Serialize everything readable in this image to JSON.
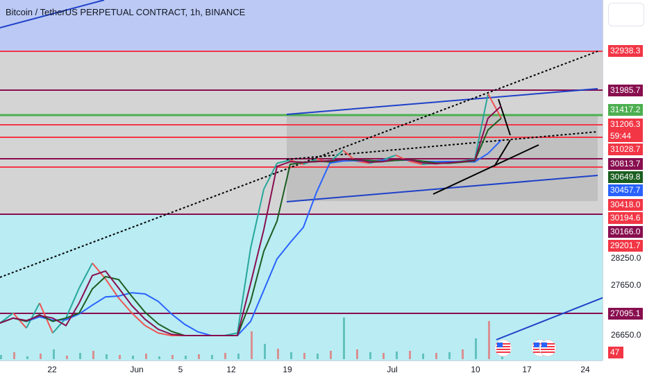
{
  "header": {
    "title": "Bitcoin / TetherUS PERPETUAL CONTRACT, 1h, BINANCE"
  },
  "colors": {
    "red_line": "#f23645",
    "maroon_line": "#880e4f",
    "green_line": "#4caf50",
    "blue_channel": "#1e40c8",
    "upper_zone": "#b2c1f2",
    "lower_zone": "#b2ebf2",
    "mid_zone": "#bdbdbd"
  },
  "price_axis": {
    "tags": [
      {
        "label": "32938.3",
        "bg": "#f23645",
        "fg": "#ffffff"
      },
      {
        "label": "31985.7",
        "bg": "#880e4f",
        "fg": "#ffffff"
      },
      {
        "label": "31417.2",
        "bg": "#4caf50",
        "fg": "#ffffff"
      },
      {
        "label": "31206.3",
        "bg": "#f23645",
        "fg": "#ffffff"
      },
      {
        "label": "59:44",
        "bg": "#f23645",
        "fg": "#ffffff"
      },
      {
        "label": "31028.7",
        "bg": "#f23645",
        "fg": "#ffffff"
      },
      {
        "label": "30813.7",
        "bg": "#880e4f",
        "fg": "#ffffff"
      },
      {
        "label": "30649.8",
        "bg": "#1b5e20",
        "fg": "#ffffff"
      },
      {
        "label": "30457.7",
        "bg": "#2962ff",
        "fg": "#ffffff"
      },
      {
        "label": "30418.0",
        "bg": "#f23645",
        "fg": "#ffffff"
      },
      {
        "label": "30194.6",
        "bg": "#f23645",
        "fg": "#ffffff"
      },
      {
        "label": "30166.0",
        "bg": "#880e4f",
        "fg": "#ffffff"
      },
      {
        "label": "29201.7",
        "bg": "#f23645",
        "fg": "#ffffff"
      },
      {
        "label": "27095.1",
        "bg": "#880e4f",
        "fg": "#ffffff"
      },
      {
        "label": "47",
        "bg": "#f23645",
        "fg": "#ffffff"
      }
    ],
    "plain_ticks": [
      "28250.0",
      "27650.0",
      "26650.0"
    ]
  },
  "chart_data": {
    "type": "line",
    "title": "Bitcoin / TetherUS PERPETUAL CONTRACT, 1h, BINANCE",
    "xlabel": "",
    "ylabel": "",
    "x_ticks": [
      "22",
      "Jun",
      "5",
      "12",
      "19",
      "Jul",
      "10",
      "17",
      "24"
    ],
    "grid": false,
    "horizontal_levels": [
      {
        "price": 32938.3,
        "color": "red"
      },
      {
        "price": 31985.7,
        "color": "maroon"
      },
      {
        "price": 31417.2,
        "color": "green"
      },
      {
        "price": 31206.3,
        "color": "red"
      },
      {
        "price": 31028.7,
        "color": "red"
      },
      {
        "price": 30813.7,
        "color": "maroon"
      },
      {
        "price": 30418.0,
        "color": "red"
      },
      {
        "price": 30166.0,
        "color": "maroon"
      },
      {
        "price": 27095.1,
        "color": "maroon"
      }
    ],
    "price_series_approx": [
      26900,
      27100,
      26800,
      27300,
      26700,
      27000,
      27600,
      28150,
      27800,
      27400,
      27100,
      26850,
      26700,
      26650,
      26550,
      26500,
      26550,
      26600,
      26700,
      28700,
      30300,
      30600,
      30750,
      30550,
      30800,
      30650,
      30900,
      30700,
      30600,
      30750,
      30850,
      30700,
      30550,
      30600,
      30650,
      30700,
      30800,
      31900,
      31350
    ]
  }
}
